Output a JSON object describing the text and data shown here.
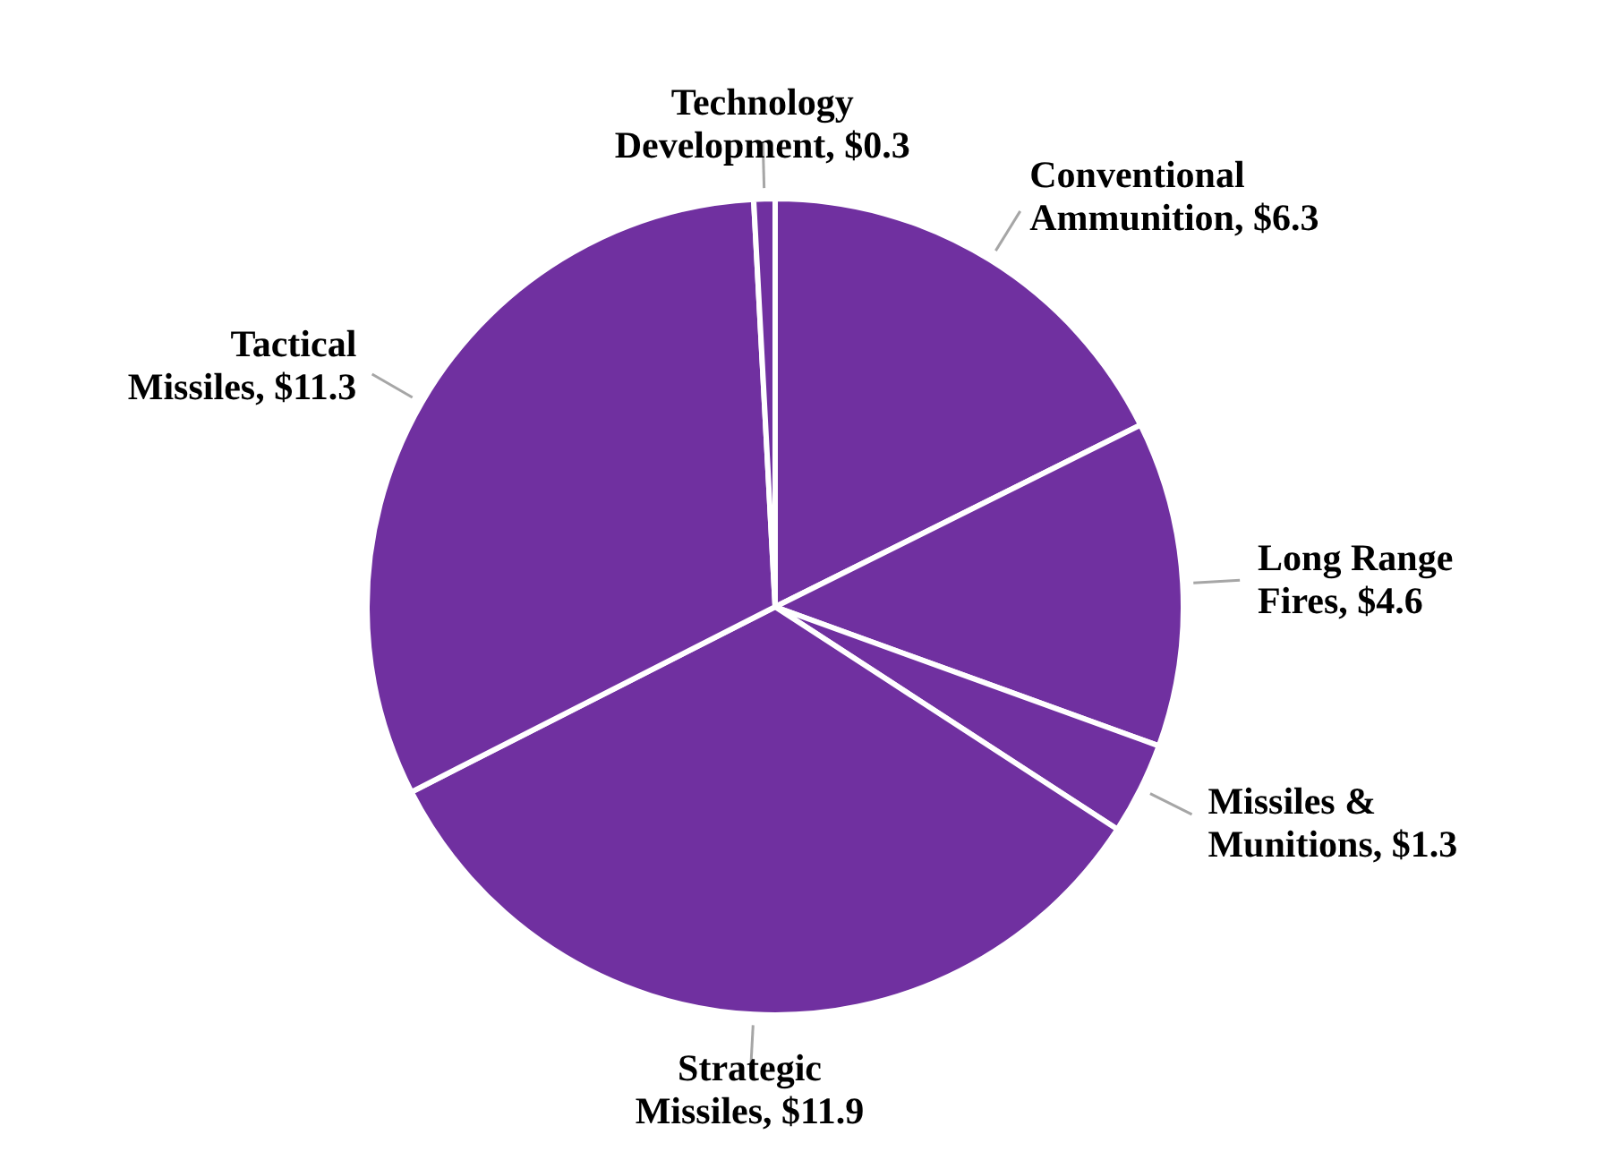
{
  "chart_data": {
    "type": "pie",
    "categories": [
      "Conventional Ammunition",
      "Long Range Fires",
      "Missiles & Munitions",
      "Strategic Missiles",
      "Tactical Missiles",
      "Technology Development"
    ],
    "values": [
      6.3,
      4.6,
      1.3,
      11.9,
      11.3,
      0.3
    ],
    "value_labels": [
      "$6.3",
      "$4.6",
      "$1.3",
      "$11.9",
      "$11.3",
      "$0.3"
    ],
    "colors": [
      "#7030a0",
      "#7030a0",
      "#7030a0",
      "#7030a0",
      "#7030a0",
      "#7030a0"
    ],
    "legend": false
  }
}
